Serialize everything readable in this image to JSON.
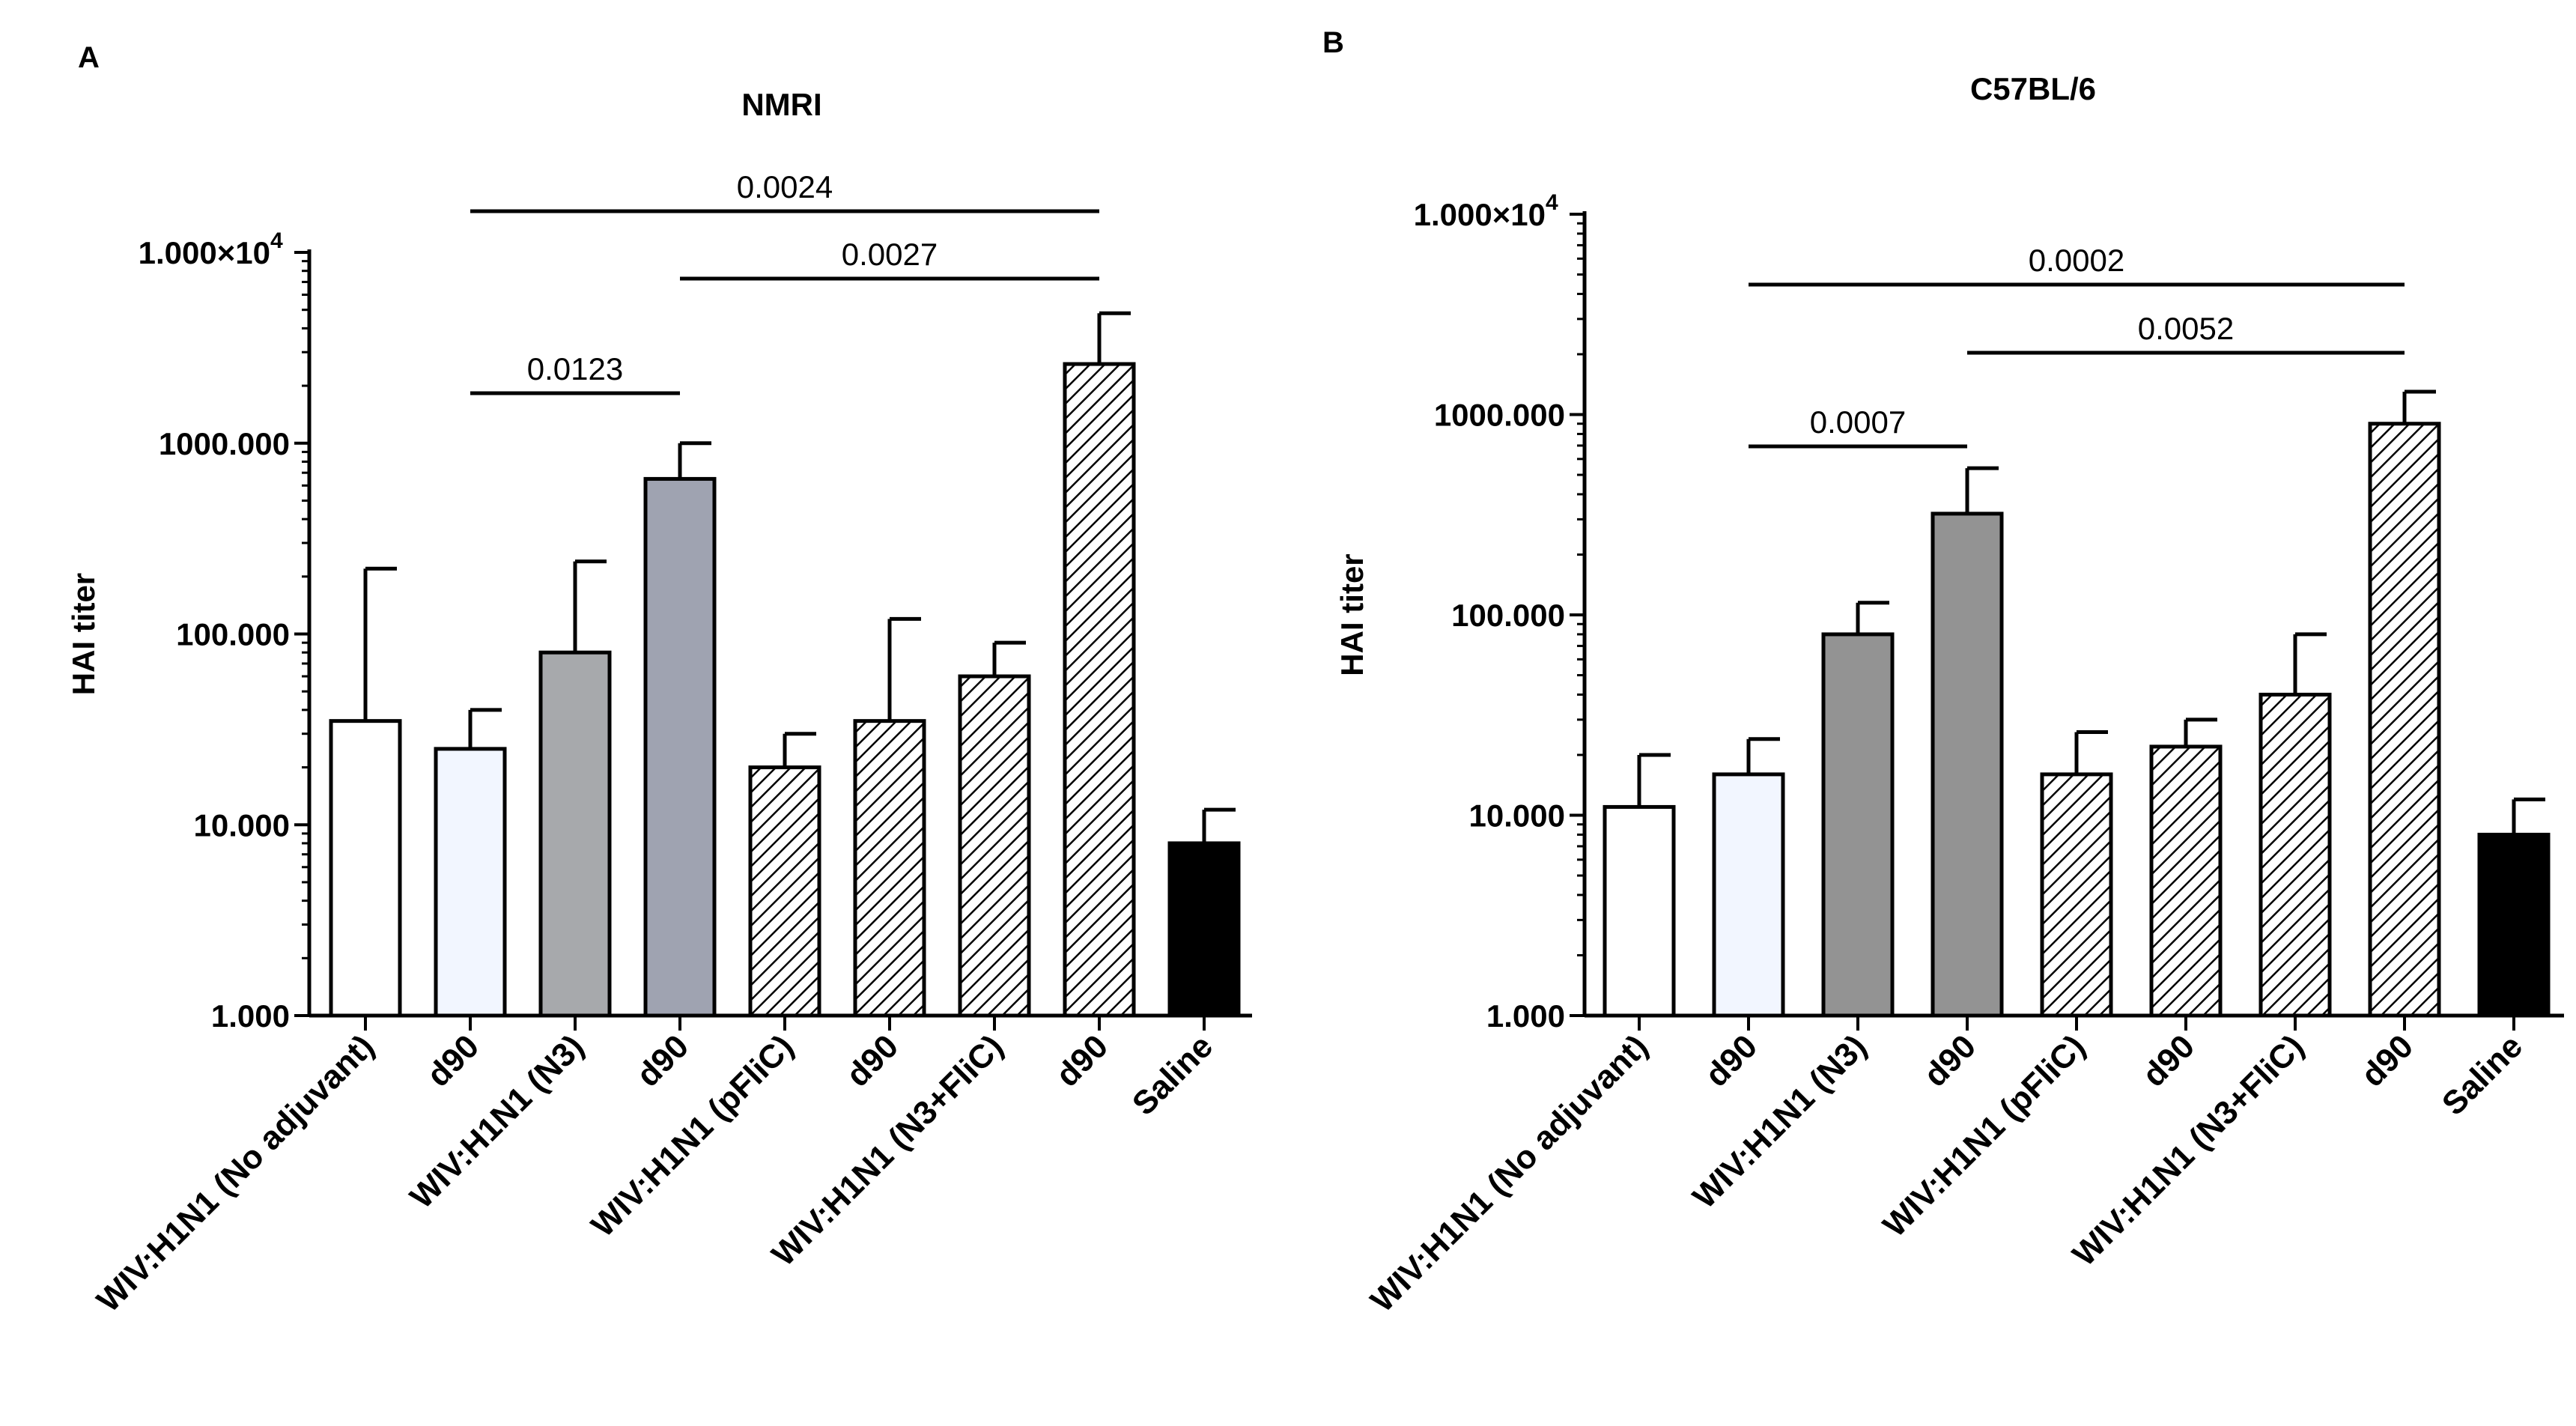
{
  "figure": {
    "background": "#ffffff",
    "patterns": {
      "hatch": "diagonal-hatch"
    }
  },
  "chart_data": [
    {
      "panel": "A",
      "type": "bar",
      "title": "NMRI",
      "ylabel": "HAI titer",
      "xlabel": "",
      "yscale": "log",
      "ylim": [
        1,
        10000
      ],
      "yticks": [
        1,
        10,
        100,
        1000,
        10000
      ],
      "ytick_labels": [
        "1.000",
        "10.000",
        "100.000",
        "1000.000",
        "1.000×10^4"
      ],
      "categories": [
        "WIV:H1N1 (No adjuvant)",
        "d90",
        "WIV:H1N1 (N3)",
        "d90",
        "WIV:H1N1 (pFliC)",
        "d90",
        "WIV:H1N1 (N3+FliC)",
        "d90",
        "Saline"
      ],
      "values": [
        35,
        25,
        80,
        650,
        20,
        35,
        60,
        2600,
        8
      ],
      "error_upper": [
        220,
        40,
        240,
        1000,
        30,
        120,
        90,
        4800,
        12
      ],
      "fills": [
        "#ffffff",
        "#f2f6ff",
        "#a7a9ac",
        "#9fa3b1",
        "hatch",
        "hatch",
        "hatch",
        "hatch",
        "#000000"
      ],
      "significance": [
        {
          "from": 1,
          "to": 3,
          "label": "0.0123"
        },
        {
          "from": 3,
          "to": 7,
          "label": "0.0027"
        },
        {
          "from": 1,
          "to": 7,
          "label": "0.0024"
        }
      ]
    },
    {
      "panel": "B",
      "type": "bar",
      "title": "C57BL/6",
      "ylabel": "HAI titer",
      "xlabel": "",
      "yscale": "log",
      "ylim": [
        1,
        10000
      ],
      "yticks": [
        1,
        10,
        100,
        1000,
        10000
      ],
      "ytick_labels": [
        "1.000",
        "10.000",
        "100.000",
        "1000.000",
        "1.000×10^4"
      ],
      "categories": [
        "WIV:H1N1 (No adjuvant)",
        "d90",
        "WIV:H1N1 (N3)",
        "d90",
        "WIV:H1N1 (pFliC)",
        "d90",
        "WIV:H1N1 (N3+FliC)",
        "d90",
        "Saline"
      ],
      "values": [
        11,
        16,
        80,
        320,
        16,
        22,
        40,
        900,
        8
      ],
      "error_upper": [
        20,
        24,
        115,
        540,
        26,
        30,
        80,
        1300,
        12
      ],
      "fills": [
        "#ffffff",
        "#f2f6ff",
        "#939393",
        "#939393",
        "hatch",
        "hatch",
        "hatch",
        "hatch",
        "#000000"
      ],
      "significance": [
        {
          "from": 1,
          "to": 3,
          "label": "0.0007"
        },
        {
          "from": 3,
          "to": 7,
          "label": "0.0052"
        },
        {
          "from": 1,
          "to": 7,
          "label": "0.0002"
        }
      ]
    }
  ]
}
